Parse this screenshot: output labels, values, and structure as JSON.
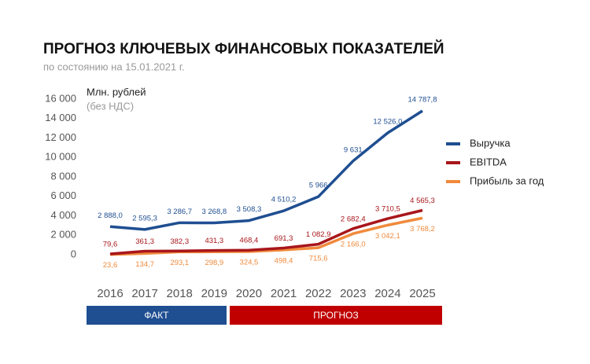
{
  "chart_data": {
    "type": "line",
    "title": "ПРОГНОЗ КЛЮЧЕВЫХ ФИНАНСОВЫХ ПОКАЗАТЕЛЕЙ",
    "subtitle": "по состоянию на 15.01.2021 г.",
    "y_label": "Млн. рублей",
    "y_label_note": "(без НДС)",
    "categories": [
      "2016",
      "2017",
      "2018",
      "2019",
      "2020",
      "2021",
      "2022",
      "2023",
      "2024",
      "2025"
    ],
    "series": [
      {
        "name": "Выручка",
        "color": "#1f4e91",
        "values": [
          2888.0,
          2595.3,
          3286.7,
          3268.8,
          3508.3,
          4510.2,
          5966,
          9631,
          12526.0,
          14787.8
        ],
        "value_labels": [
          "2 888,0",
          "2 595,3",
          "3 286,7",
          "3 268,8",
          "3 508,3",
          "4 510,2",
          "5 966",
          "9 631",
          "12 526,0",
          "14 787,8"
        ]
      },
      {
        "name": "EBITDA",
        "color": "#a8161b",
        "values": [
          79.6,
          361.3,
          382.3,
          431.3,
          468.4,
          691.3,
          1082.9,
          2682.4,
          3710.5,
          4565.3
        ],
        "value_labels": [
          "79,6",
          "361,3",
          "382,3",
          "431,3",
          "468,4",
          "691,3",
          "1 082,9",
          "2 682,4",
          "3 710,5",
          "4 565,3"
        ]
      },
      {
        "name": "Прибыль за год",
        "color": "#f08a3c",
        "values": [
          23.6,
          134.7,
          293.1,
          298.9,
          324.5,
          498.4,
          715.6,
          2166.0,
          3042.1,
          3768.2
        ],
        "value_labels": [
          "23,6",
          "134,7",
          "293,1",
          "298,9",
          "324,5",
          "498,4",
          "715,6",
          "2 166,0",
          "3 042,1",
          "3 768,2"
        ]
      }
    ],
    "ylim": [
      0,
      16000
    ],
    "yticks": [
      0,
      {
        "value": 2000,
        "label": "2 000"
      },
      {
        "value": 4000,
        "label": "4 000"
      },
      {
        "value": 6000,
        "label": "6 000"
      },
      {
        "value": 8000,
        "label": "8 000"
      },
      {
        "value": 10000,
        "label": "10 000"
      },
      {
        "value": 12000,
        "label": "12 000"
      },
      {
        "value": 14000,
        "label": "14 000"
      },
      {
        "value": 16000,
        "label": "16 000"
      }
    ],
    "grid": false,
    "legend": "right",
    "periods": [
      {
        "label": "ФАКТ",
        "color": "#1f4e91"
      },
      {
        "label": "ПРОГНОЗ",
        "color": "#c00000"
      }
    ]
  }
}
